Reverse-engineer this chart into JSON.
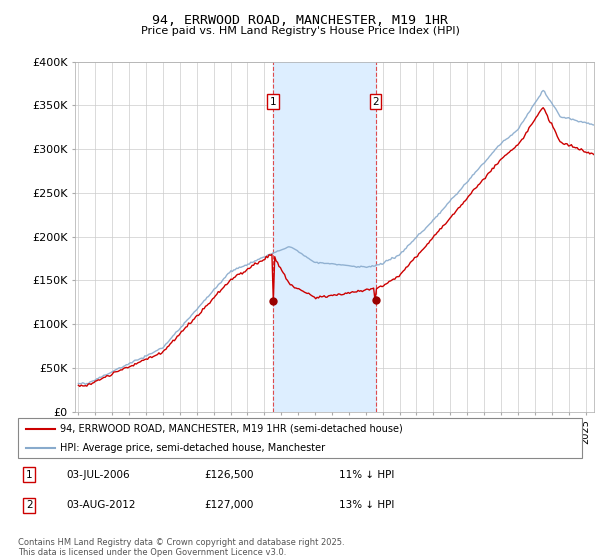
{
  "title": "94, ERRWOOD ROAD, MANCHESTER, M19 1HR",
  "subtitle": "Price paid vs. HM Land Registry's House Price Index (HPI)",
  "ylabel_ticks": [
    "£0",
    "£50K",
    "£100K",
    "£150K",
    "£200K",
    "£250K",
    "£300K",
    "£350K",
    "£400K"
  ],
  "ylim": [
    0,
    400000
  ],
  "xlim_start": 1994.8,
  "xlim_end": 2025.5,
  "xticks": [
    1995,
    1996,
    1997,
    1998,
    1999,
    2000,
    2001,
    2002,
    2003,
    2004,
    2005,
    2006,
    2007,
    2008,
    2009,
    2010,
    2011,
    2012,
    2013,
    2014,
    2015,
    2016,
    2017,
    2018,
    2019,
    2020,
    2021,
    2022,
    2023,
    2024,
    2025
  ],
  "sale1_date": 2006.5,
  "sale1_price": 126500,
  "sale1_label": "1",
  "sale2_date": 2012.58,
  "sale2_price": 127000,
  "sale2_label": "2",
  "shaded_region_x1": 2006.5,
  "shaded_region_x2": 2012.58,
  "red_line_color": "#cc0000",
  "blue_line_color": "#88aacc",
  "shaded_color": "#ddeeff",
  "sale_marker_color": "#990000",
  "legend_line1": "94, ERRWOOD ROAD, MANCHESTER, M19 1HR (semi-detached house)",
  "legend_line2": "HPI: Average price, semi-detached house, Manchester",
  "annotation1_date": "03-JUL-2006",
  "annotation1_price": "£126,500",
  "annotation1_hpi": "11% ↓ HPI",
  "annotation2_date": "03-AUG-2012",
  "annotation2_price": "£127,000",
  "annotation2_hpi": "13% ↓ HPI",
  "footer": "Contains HM Land Registry data © Crown copyright and database right 2025.\nThis data is licensed under the Open Government Licence v3.0.",
  "background_color": "#ffffff",
  "grid_color": "#cccccc"
}
